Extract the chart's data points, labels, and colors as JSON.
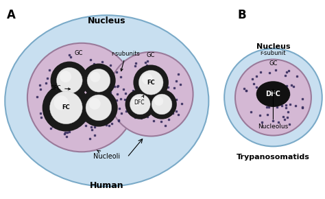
{
  "bg_color": "white",
  "nucleus_A_color": "#c8dff0",
  "nucleus_A_border": "#7aaac8",
  "gc_color": "#d4b8d4",
  "gc_border": "#9a7a9a",
  "dfc_ring_color": "#1a1a1a",
  "fc_color": "#e8e8e8",
  "fc_highlight": "#ffffff",
  "dot_color": "#3a3060",
  "nucleus_B_color": "#c8dff0",
  "nucleus_B_border": "#7aaac8",
  "dfc_B_color": "#111111",
  "label_A": "A",
  "label_B": "B",
  "label_nucleus_A": "Nucleus",
  "label_human": "Human",
  "label_nucleus_B": "Nucleus",
  "label_trypanosomatids": "Trypanosomatids",
  "label_rsubunits": "r-subunits",
  "label_rsubunit": "r-subunit",
  "label_nucleoli": "Nucleoli",
  "label_gc": "GC",
  "label_dfc": "DFC",
  "label_fc": "FC",
  "label_nucleolus": "Nucleolus",
  "figsize": [
    4.74,
    2.9
  ],
  "dpi": 100
}
